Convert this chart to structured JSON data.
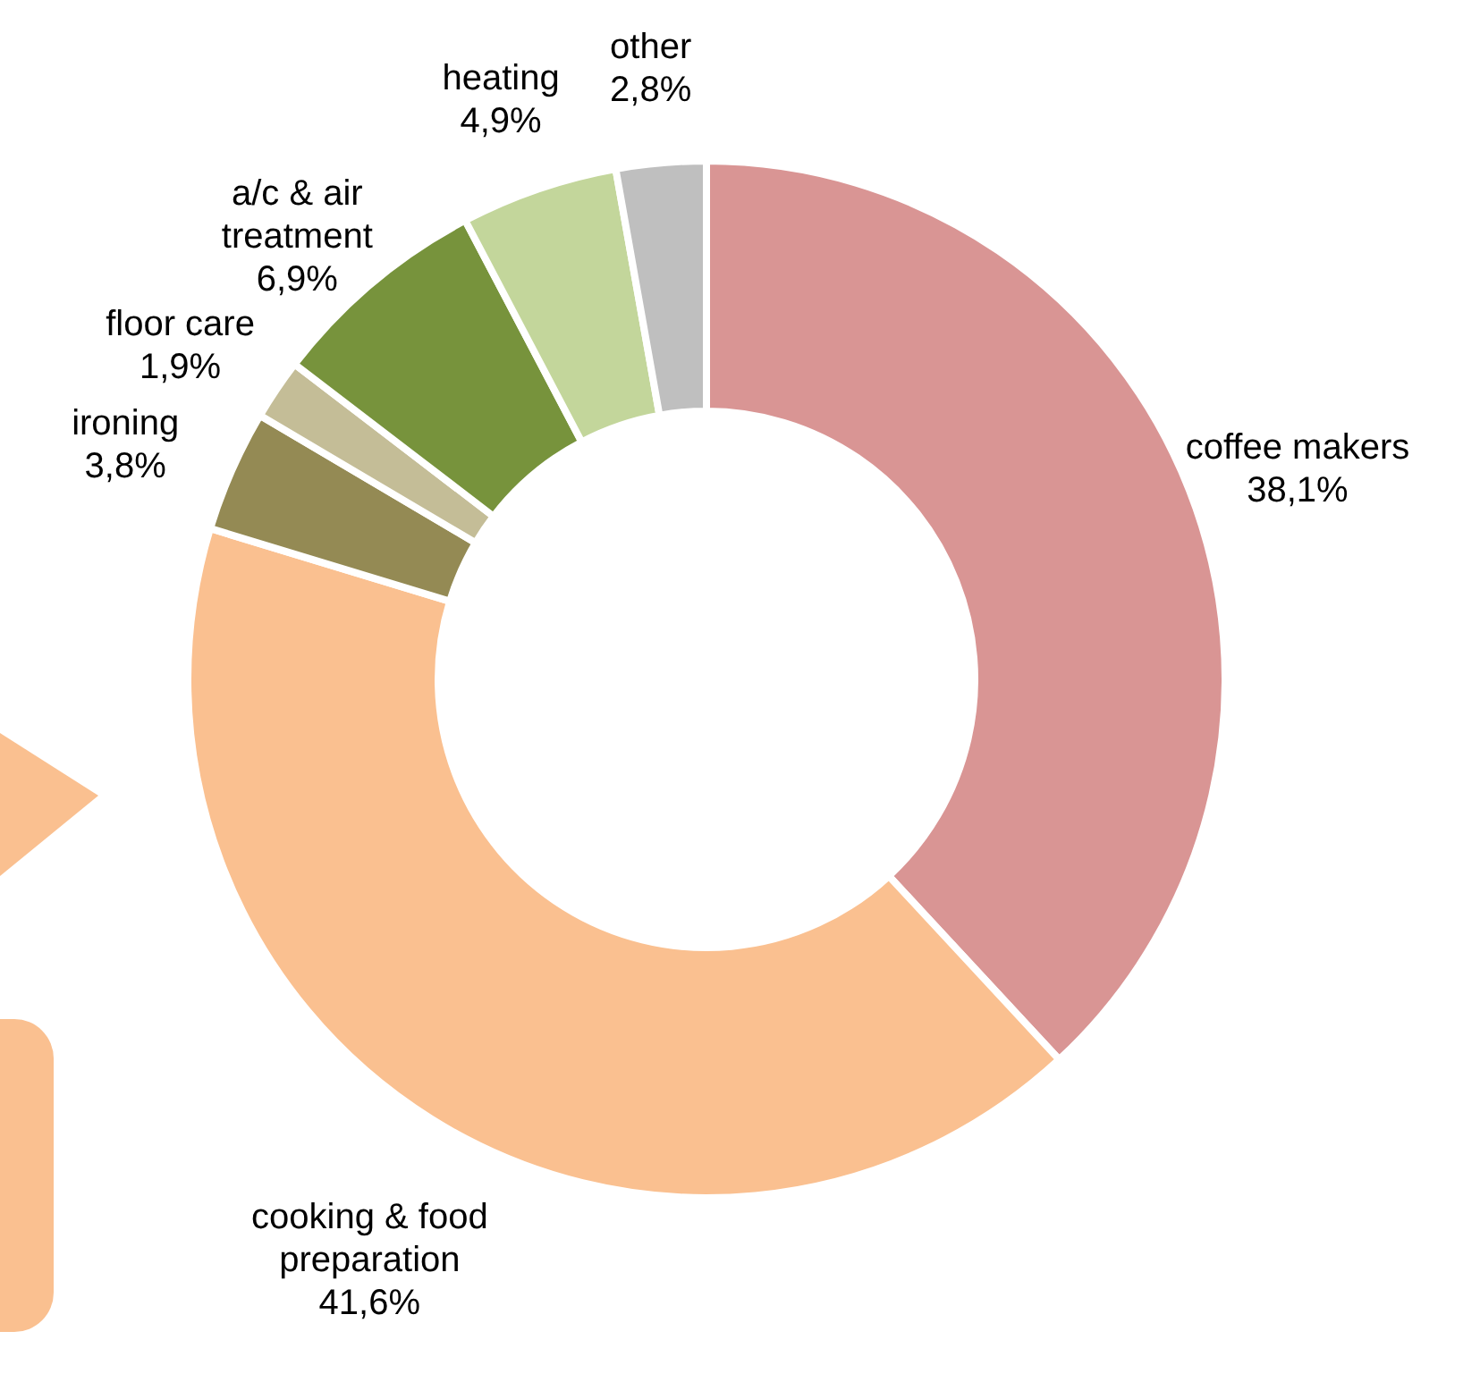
{
  "chart_data": {
    "type": "donut",
    "categories": [
      "coffee makers",
      "cooking & food preparation",
      "ironing",
      "floor care",
      "a/c & air treatment",
      "heating",
      "other"
    ],
    "values": [
      38.1,
      41.6,
      3.8,
      1.9,
      6.9,
      4.9,
      2.8
    ],
    "colors": [
      "#d99594",
      "#fac090",
      "#948a54",
      "#c4bd97",
      "#77933c",
      "#c3d69b",
      "#bfbfbf"
    ],
    "value_labels": [
      "38,1%",
      "41,6%",
      "3,8%",
      "1,9%",
      "6,9%",
      "4,9%",
      "2,8%"
    ]
  }
}
